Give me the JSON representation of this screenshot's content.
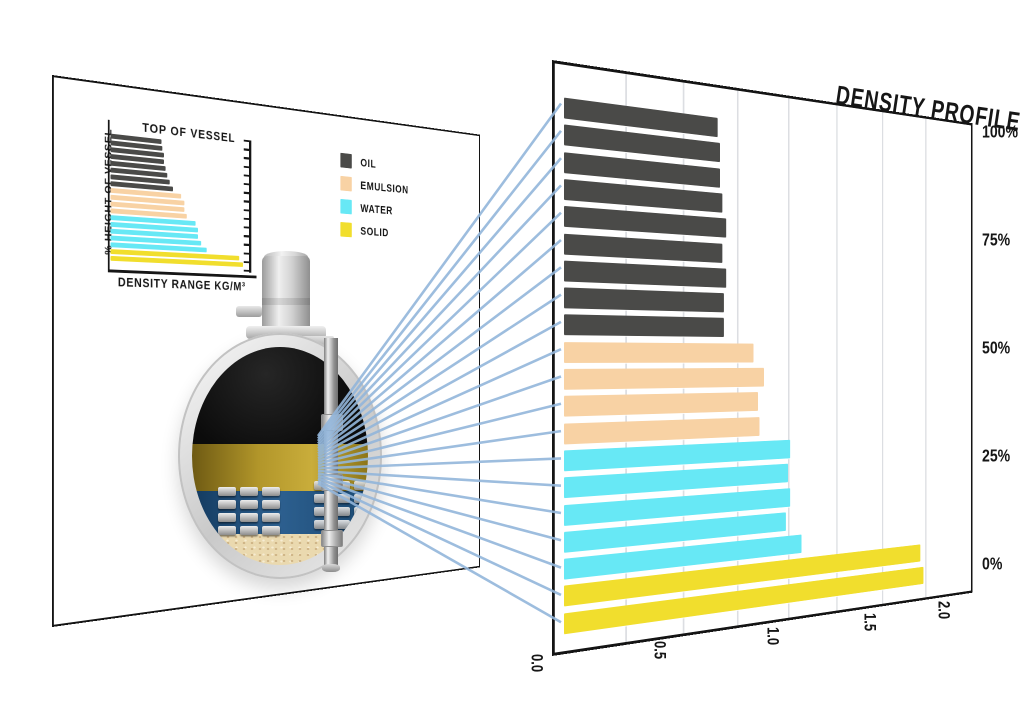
{
  "legend": {
    "items": [
      {
        "label": "OIL",
        "color": "#4a4a48"
      },
      {
        "label": "EMULSION",
        "color": "#f8d2a4"
      },
      {
        "label": "WATER",
        "color": "#67e8f5"
      },
      {
        "label": "SOLID",
        "color": "#f1de2d"
      }
    ]
  },
  "chart_data": [
    {
      "id": "density-profile",
      "type": "bar",
      "orientation": "horizontal",
      "title": "DENSITY PROFILE",
      "xlim": [
        0,
        2.0
      ],
      "grid": true,
      "grid_step": 0.25,
      "x_ticks": [
        "0.0",
        "0.5",
        "1.0",
        "1.5",
        "2.0"
      ],
      "y_ticks": [
        "100%",
        "75%",
        "50%",
        "25%",
        "0%"
      ],
      "bars": [
        {
          "layer": "OIL",
          "value": 0.66
        },
        {
          "layer": "OIL",
          "value": 0.67
        },
        {
          "layer": "OIL",
          "value": 0.67
        },
        {
          "layer": "OIL",
          "value": 0.68
        },
        {
          "layer": "OIL",
          "value": 0.7
        },
        {
          "layer": "OIL",
          "value": 0.68
        },
        {
          "layer": "OIL",
          "value": 0.7
        },
        {
          "layer": "OIL",
          "value": 0.69
        },
        {
          "layer": "OIL",
          "value": 0.69
        },
        {
          "layer": "EMULSION",
          "value": 0.83
        },
        {
          "layer": "EMULSION",
          "value": 0.88
        },
        {
          "layer": "EMULSION",
          "value": 0.85
        },
        {
          "layer": "EMULSION",
          "value": 0.86
        },
        {
          "layer": "WATER",
          "value": 1.01
        },
        {
          "layer": "WATER",
          "value": 1.0
        },
        {
          "layer": "WATER",
          "value": 1.01
        },
        {
          "layer": "WATER",
          "value": 0.99
        },
        {
          "layer": "WATER",
          "value": 1.07
        },
        {
          "layer": "SOLID",
          "value": 1.72
        },
        {
          "layer": "SOLID",
          "value": 1.74
        }
      ]
    },
    {
      "id": "vessel-inset",
      "type": "bar",
      "orientation": "horizontal",
      "title": "TOP OF VESSEL",
      "xlabel": "DENSITY RANGE KG/M³",
      "ylabel": "% HEIGHT OF VESSEL",
      "grid": false,
      "bars": [
        {
          "layer": "OIL",
          "value": 0.34
        },
        {
          "layer": "OIL",
          "value": 0.35
        },
        {
          "layer": "OIL",
          "value": 0.36
        },
        {
          "layer": "OIL",
          "value": 0.36
        },
        {
          "layer": "OIL",
          "value": 0.37
        },
        {
          "layer": "OIL",
          "value": 0.38
        },
        {
          "layer": "OIL",
          "value": 0.4
        },
        {
          "layer": "OIL",
          "value": 0.42
        },
        {
          "layer": "EMULSION",
          "value": 0.48
        },
        {
          "layer": "EMULSION",
          "value": 0.5
        },
        {
          "layer": "EMULSION",
          "value": 0.5
        },
        {
          "layer": "EMULSION",
          "value": 0.52
        },
        {
          "layer": "WATER",
          "value": 0.58
        },
        {
          "layer": "WATER",
          "value": 0.6
        },
        {
          "layer": "WATER",
          "value": 0.6
        },
        {
          "layer": "WATER",
          "value": 0.62
        },
        {
          "layer": "WATER",
          "value": 0.66
        },
        {
          "layer": "SOLID",
          "value": 0.9
        },
        {
          "layer": "SOLID",
          "value": 0.93
        }
      ]
    }
  ],
  "colors": {
    "oil": "#4a4a48",
    "emulsion": "#f8d2a4",
    "water": "#67e8f5",
    "solid": "#f1de2d",
    "connector_line": "#93b6db",
    "grid_line": "#dcdee2",
    "frame": "#141414"
  }
}
